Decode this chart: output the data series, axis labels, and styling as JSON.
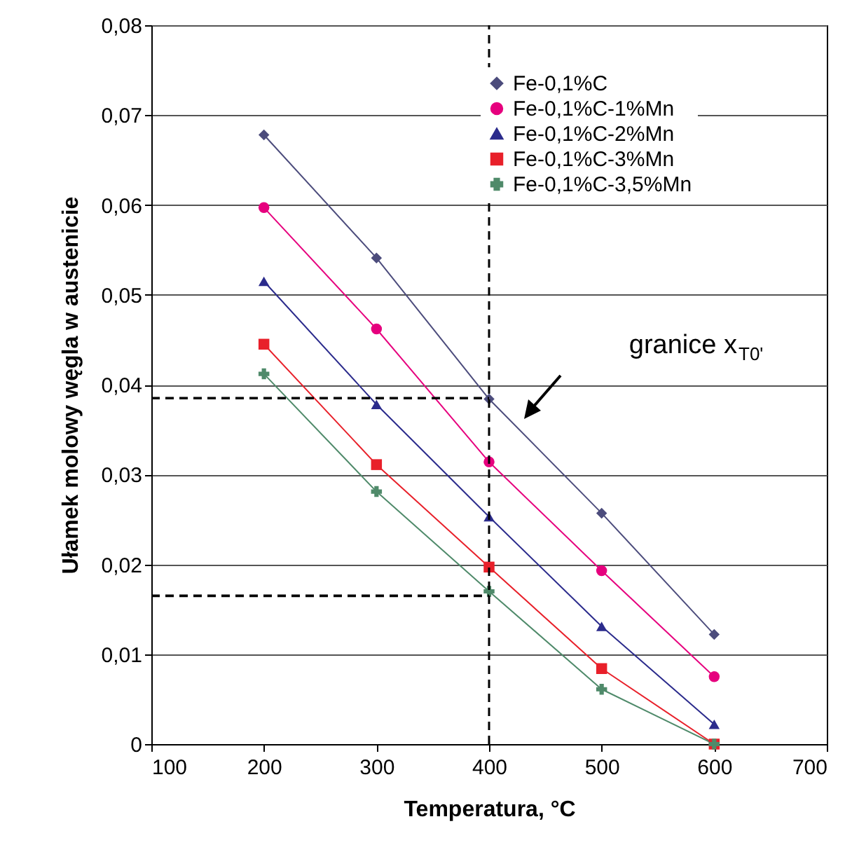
{
  "chart_data": {
    "type": "line",
    "xlabel": "Temperatura, °C",
    "ylabel": "Ułamek molowy węgla w austenicie",
    "x": [
      200,
      300,
      400,
      500,
      600
    ],
    "series": [
      {
        "name": "Fe-0,1%C",
        "color": "#4c4c7c",
        "marker": "diamond",
        "values": [
          0.0678,
          0.0541,
          0.0384,
          0.0257,
          0.0122
        ]
      },
      {
        "name": "Fe-0,1%C-1%Mn",
        "color": "#e6007e",
        "marker": "circle",
        "values": [
          0.0597,
          0.0462,
          0.0314,
          0.0193,
          0.0075
        ]
      },
      {
        "name": "Fe-0,1%C-2%Mn",
        "color": "#2b2b8c",
        "marker": "triangle",
        "values": [
          0.0515,
          0.0378,
          0.0253,
          0.0131,
          0.0022
        ]
      },
      {
        "name": "Fe-0,1%C-3%Mn",
        "color": "#e8202a",
        "marker": "square",
        "values": [
          0.0445,
          0.0311,
          0.0197,
          0.0084,
          0
        ]
      },
      {
        "name": "Fe-0,1%C-3,5%Mn",
        "color": "#4f8a6a",
        "marker": "cross",
        "values": [
          0.0412,
          0.0281,
          0.017,
          0.0061,
          0
        ]
      }
    ],
    "xlim": [
      100,
      700
    ],
    "xticks": [
      100,
      200,
      300,
      400,
      500,
      600,
      700
    ],
    "ylim": [
      0,
      0.08
    ],
    "yticks": [
      0,
      {
        "value": 0.01,
        "label": "0,01"
      },
      {
        "value": 0.02,
        "label": "0,02"
      },
      {
        "value": 0.03,
        "label": "0,03"
      },
      {
        "value": 0.04,
        "label": "0,04"
      },
      {
        "value": 0.05,
        "label": "0,05"
      },
      {
        "value": 0.06,
        "label": "0,06"
      },
      {
        "value": 0.07,
        "label": "0,07"
      },
      {
        "value": 0.08,
        "label": "0,08"
      }
    ],
    "grid": "y",
    "legend": "top right",
    "ref_lines": [
      {
        "axis": "x",
        "value": 400,
        "line_style": "dashed"
      },
      {
        "axis": "y",
        "value": 0.0385,
        "line_style": "dashed"
      },
      {
        "axis": "y",
        "value": 0.0165,
        "line_style": "dashed"
      }
    ],
    "annotations": [
      "granice x$_{T0'}$"
    ]
  }
}
